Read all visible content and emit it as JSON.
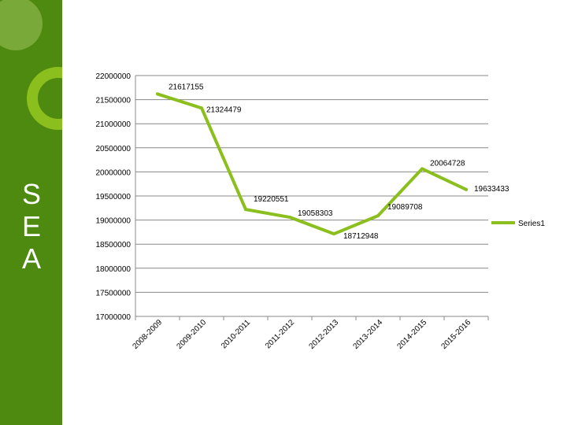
{
  "slide": {
    "side_letters": [
      "S",
      "E",
      "A"
    ],
    "colors": {
      "sidebar": "#4f8a10",
      "line": "#8bbf1e",
      "gridline": "#888888"
    }
  },
  "chart_data": {
    "type": "line",
    "categories": [
      "2008-2009",
      "2009-2010",
      "2010-2011",
      "2011-2012",
      "2012-2013",
      "2013-2014",
      "2014-2015",
      "2015-2016"
    ],
    "series": [
      {
        "name": "Series1",
        "values": [
          21617155,
          21324479,
          19220551,
          19058303,
          18712948,
          19089708,
          20064728,
          19633433
        ]
      }
    ],
    "data_labels": [
      "21617155",
      "21324479",
      "19220551",
      "19058303",
      "18712948",
      "19089708",
      "20064728",
      "19633433"
    ],
    "ylim": [
      17000000,
      22000000
    ],
    "yticks": [
      "22000000",
      "21500000",
      "21000000",
      "20500000",
      "20000000",
      "19500000",
      "19000000",
      "18500000",
      "18000000",
      "17500000",
      "17000000"
    ],
    "grid": true,
    "legend": "right",
    "title": "",
    "xlabel": "",
    "ylabel": ""
  }
}
